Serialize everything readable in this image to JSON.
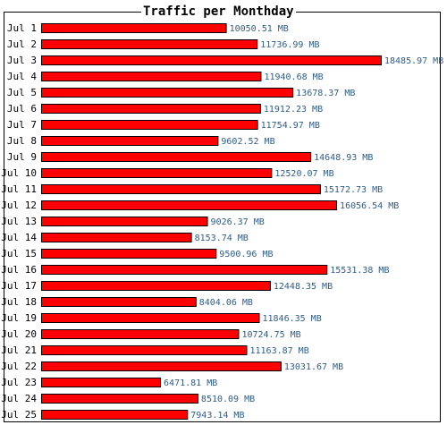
{
  "chart_data": {
    "type": "bar",
    "orientation": "horizontal",
    "title": "Traffic per Monthday",
    "unit": "MB",
    "bar_color": "#ff0000",
    "bar_border_color": "#000000",
    "value_label_color": "#2f5c8a",
    "categories": [
      "Jul 1",
      "Jul 2",
      "Jul 3",
      "Jul 4",
      "Jul 5",
      "Jul 6",
      "Jul 7",
      "Jul 8",
      "Jul 9",
      "Jul 10",
      "Jul 11",
      "Jul 12",
      "Jul 13",
      "Jul 14",
      "Jul 15",
      "Jul 16",
      "Jul 17",
      "Jul 18",
      "Jul 19",
      "Jul 20",
      "Jul 21",
      "Jul 22",
      "Jul 23",
      "Jul 24",
      "Jul 25"
    ],
    "values": [
      10050.51,
      11736.99,
      18485.97,
      11940.68,
      13678.37,
      11912.23,
      11754.97,
      9602.52,
      14648.93,
      12520.07,
      15172.73,
      16056.54,
      9026.37,
      8153.74,
      9500.96,
      15531.38,
      12448.35,
      8404.06,
      11846.35,
      10724.75,
      11163.87,
      13031.67,
      6471.81,
      8510.09,
      7943.14
    ],
    "value_labels": [
      "10050.51 MB",
      "11736.99 MB",
      "18485.97 MB",
      "11940.68 MB",
      "13678.37 MB",
      "11912.23 MB",
      "11754.97 MB",
      "9602.52 MB",
      "14648.93 MB",
      "12520.07 MB",
      "15172.73 MB",
      "16056.54 MB",
      "9026.37 MB",
      "8153.74 MB",
      "9500.96 MB",
      "15531.38 MB",
      "12448.35 MB",
      "8404.06 MB",
      "11846.35 MB",
      "10724.75 MB",
      "11163.87 MB",
      "13031.67 MB",
      "6471.81 MB",
      "8510.09 MB",
      "7943.14 MB"
    ],
    "xlim": [
      0,
      18485.97
    ],
    "grid": false
  }
}
